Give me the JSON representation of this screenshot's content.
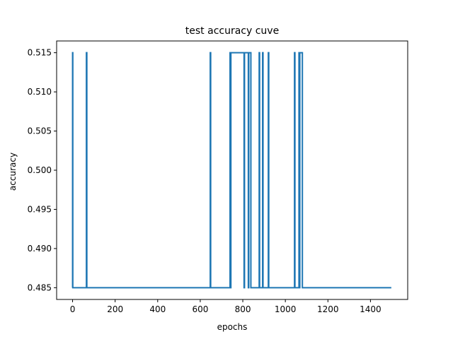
{
  "chart_data": {
    "type": "line",
    "title": "test accuracy cuve",
    "xlabel": "epochs",
    "ylabel": "accuracy",
    "xlim": [
      -75,
      1575
    ],
    "ylim": [
      0.4835,
      0.5165
    ],
    "x_ticks": [
      0,
      200,
      400,
      600,
      800,
      1000,
      1200,
      1400
    ],
    "x_tick_labels": [
      "0",
      "200",
      "400",
      "600",
      "800",
      "1000",
      "1200",
      "1400"
    ],
    "y_ticks": [
      0.485,
      0.49,
      0.495,
      0.5,
      0.505,
      0.51,
      0.515
    ],
    "y_tick_labels": [
      "0.485",
      "0.490",
      "0.495",
      "0.500",
      "0.505",
      "0.510",
      "0.515"
    ],
    "grid": false,
    "color": "#1f77b4",
    "series": [
      {
        "x": [
          0,
          0,
          1,
          1,
          2,
          2,
          65,
          65,
          67,
          67,
          647,
          647,
          649,
          649,
          740,
          740,
          742,
          742,
          744,
          744,
          746,
          746,
          806,
          806,
          808,
          808,
          812,
          812,
          826,
          826,
          828,
          828,
          830,
          830,
          838,
          838,
          840,
          840,
          877,
          877,
          879,
          879,
          893,
          893,
          895,
          895,
          920,
          920,
          922,
          922,
          1043,
          1043,
          1045,
          1045,
          1064,
          1064,
          1066,
          1066,
          1068,
          1068,
          1070,
          1070,
          1080,
          1080,
          1082,
          1082,
          1498
        ],
        "y": [
          0.485,
          0.515,
          0.515,
          0.485,
          0.485,
          0.485,
          0.485,
          0.515,
          0.515,
          0.485,
          0.485,
          0.515,
          0.515,
          0.485,
          0.485,
          0.515,
          0.515,
          0.485,
          0.485,
          0.515,
          0.515,
          0.515,
          0.515,
          0.485,
          0.485,
          0.515,
          0.515,
          0.515,
          0.515,
          0.485,
          0.485,
          0.515,
          0.515,
          0.515,
          0.515,
          0.485,
          0.485,
          0.485,
          0.485,
          0.515,
          0.515,
          0.485,
          0.485,
          0.515,
          0.515,
          0.485,
          0.485,
          0.515,
          0.515,
          0.485,
          0.485,
          0.515,
          0.515,
          0.485,
          0.485,
          0.515,
          0.515,
          0.485,
          0.485,
          0.515,
          0.515,
          0.515,
          0.515,
          0.485,
          0.485,
          0.485,
          0.485
        ]
      }
    ]
  }
}
